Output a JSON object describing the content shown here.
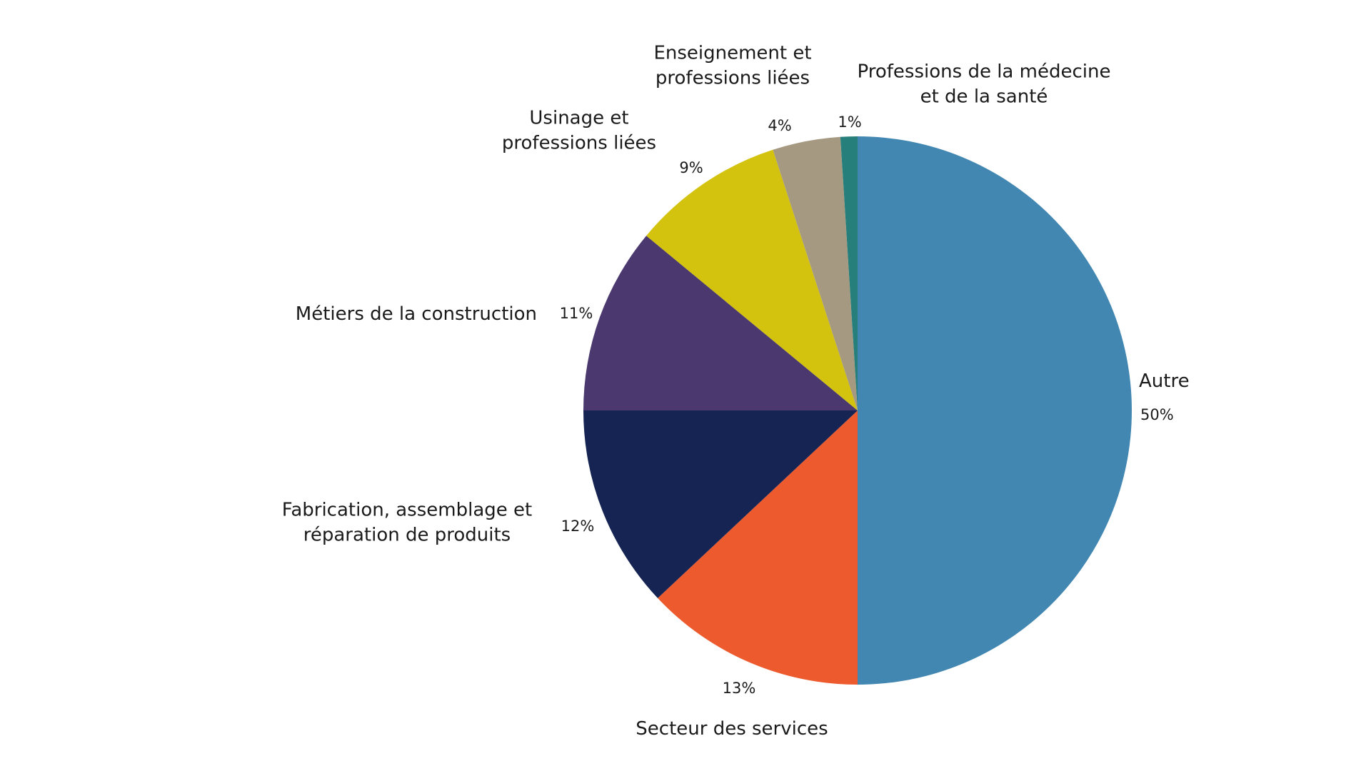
{
  "chart_data": {
    "type": "pie",
    "title": "",
    "start": "12 o'clock",
    "direction": "clockwise",
    "slices": [
      {
        "label": "Autre",
        "value": 50,
        "value_label": "50%",
        "color": "#4287B2"
      },
      {
        "label": "Secteur des services",
        "value": 13,
        "value_label": "13%",
        "color": "#EC5A2E"
      },
      {
        "label": "Fabrication, assemblage et réparation de produits",
        "value": 12,
        "value_label": "12%",
        "color": "#152453"
      },
      {
        "label": "Métiers de la construction",
        "value": 11,
        "value_label": "11%",
        "color": "#4A386E"
      },
      {
        "label": "Usinage et professions liées",
        "value": 9,
        "value_label": "9%",
        "color": "#D4C30E"
      },
      {
        "label": "Enseignement et professions liées",
        "value": 4,
        "value_label": "4%",
        "color": "#A69982"
      },
      {
        "label": "Professions de la médecine et de la santé",
        "value": 1,
        "value_label": "1%",
        "color": "#267F7A"
      }
    ]
  }
}
